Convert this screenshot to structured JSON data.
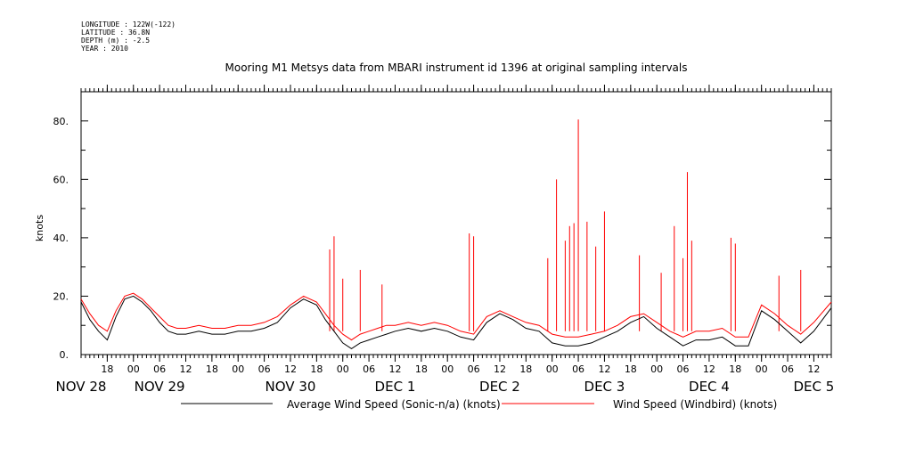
{
  "header": {
    "meta_lines": [
      "LONGITUDE : 122W(-122)",
      "LATITUDE : 36.8N",
      "DEPTH (m) : -2.5",
      "YEAR : 2010"
    ]
  },
  "chart_data": {
    "type": "line",
    "title": "Mooring M1 Metsys data from MBARI instrument id 1396 at original sampling intervals",
    "ylabel": "knots",
    "xlabel": "",
    "year": 2010,
    "ylim": [
      0,
      90
    ],
    "xlim": [
      "2010-11-28T12:00",
      "2010-12-05T16:00"
    ],
    "y_ticks": [
      "0.",
      "20.",
      "40.",
      "60.",
      "80."
    ],
    "y_tick_values": [
      0,
      20,
      40,
      60,
      80
    ],
    "x_tick_labels": [
      "18",
      "00",
      "06",
      "12",
      "18",
      "00",
      "06",
      "12",
      "18",
      "00",
      "06",
      "12",
      "18",
      "00",
      "06",
      "12",
      "18",
      "00",
      "06",
      "12",
      "18",
      "00",
      "06",
      "12",
      "18",
      "00",
      "06",
      "12"
    ],
    "x_tick_times": [
      "2010-11-28T18:00",
      "2010-11-29T00:00",
      "2010-11-29T06:00",
      "2010-11-29T12:00",
      "2010-11-29T18:00",
      "2010-11-30T00:00",
      "2010-11-30T06:00",
      "2010-11-30T12:00",
      "2010-11-30T18:00",
      "2010-12-01T00:00",
      "2010-12-01T06:00",
      "2010-12-01T12:00",
      "2010-12-01T18:00",
      "2010-12-02T00:00",
      "2010-12-02T06:00",
      "2010-12-02T12:00",
      "2010-12-02T18:00",
      "2010-12-03T00:00",
      "2010-12-03T06:00",
      "2010-12-03T12:00",
      "2010-12-03T18:00",
      "2010-12-04T00:00",
      "2010-12-04T06:00",
      "2010-12-04T12:00",
      "2010-12-04T18:00",
      "2010-12-05T00:00",
      "2010-12-05T06:00",
      "2010-12-05T12:00"
    ],
    "date_labels": [
      {
        "text": "NOV 28",
        "time": "2010-11-28T12:00"
      },
      {
        "text": "NOV 29",
        "time": "2010-11-29T06:00"
      },
      {
        "text": "NOV 30",
        "time": "2010-11-30T12:00"
      },
      {
        "text": "DEC  1",
        "time": "2010-12-01T12:00"
      },
      {
        "text": "DEC  2",
        "time": "2010-12-02T12:00"
      },
      {
        "text": "DEC  3",
        "time": "2010-12-03T12:00"
      },
      {
        "text": "DEC  4",
        "time": "2010-12-04T12:00"
      },
      {
        "text": "DEC  5",
        "time": "2010-12-05T12:00"
      }
    ],
    "grid": false,
    "legend_position": "bottom",
    "series": [
      {
        "name": "Average Wind Speed (Sonic-n/a) (knots)",
        "color": "#000000",
        "x": [
          "2010-11-28T12:00",
          "2010-11-28T14:00",
          "2010-11-28T16:00",
          "2010-11-28T18:00",
          "2010-11-28T20:00",
          "2010-11-28T22:00",
          "2010-11-29T00:00",
          "2010-11-29T02:00",
          "2010-11-29T04:00",
          "2010-11-29T06:00",
          "2010-11-29T08:00",
          "2010-11-29T10:00",
          "2010-11-29T12:00",
          "2010-11-29T15:00",
          "2010-11-29T18:00",
          "2010-11-29T21:00",
          "2010-11-30T00:00",
          "2010-11-30T03:00",
          "2010-11-30T06:00",
          "2010-11-30T09:00",
          "2010-11-30T12:00",
          "2010-11-30T15:00",
          "2010-11-30T18:00",
          "2010-11-30T20:00",
          "2010-11-30T22:00",
          "2010-12-01T00:00",
          "2010-12-01T02:00",
          "2010-12-01T04:00",
          "2010-12-01T06:00",
          "2010-12-01T08:00",
          "2010-12-01T10:00",
          "2010-12-01T12:00",
          "2010-12-01T15:00",
          "2010-12-01T18:00",
          "2010-12-01T21:00",
          "2010-12-02T00:00",
          "2010-12-02T03:00",
          "2010-12-02T06:00",
          "2010-12-02T09:00",
          "2010-12-02T12:00",
          "2010-12-02T15:00",
          "2010-12-02T18:00",
          "2010-12-02T21:00",
          "2010-12-03T00:00",
          "2010-12-03T03:00",
          "2010-12-03T06:00",
          "2010-12-03T09:00",
          "2010-12-03T12:00",
          "2010-12-03T15:00",
          "2010-12-03T18:00",
          "2010-12-03T21:00",
          "2010-12-04T00:00",
          "2010-12-04T03:00",
          "2010-12-04T06:00",
          "2010-12-04T09:00",
          "2010-12-04T12:00",
          "2010-12-04T15:00",
          "2010-12-04T18:00",
          "2010-12-04T21:00",
          "2010-12-05T00:00",
          "2010-12-05T03:00",
          "2010-12-05T06:00",
          "2010-12-05T09:00",
          "2010-12-05T12:00",
          "2010-12-05T16:00"
        ],
        "values": [
          18,
          12,
          8,
          5,
          13,
          19,
          20,
          18,
          15,
          11,
          8,
          7,
          7,
          8,
          7,
          7,
          8,
          8,
          9,
          11,
          16,
          19,
          17,
          12,
          8,
          4,
          2,
          4,
          5,
          6,
          7,
          8,
          9,
          8,
          9,
          8,
          6,
          5,
          11,
          14,
          12,
          9,
          8,
          4,
          3,
          3,
          4,
          6,
          8,
          11,
          13,
          9,
          6,
          3,
          5,
          5,
          6,
          3,
          3,
          15,
          12,
          8,
          4,
          8,
          16
        ]
      },
      {
        "name": "Wind Speed (Windbird) (knots)",
        "color": "#ff0000",
        "x": [
          "2010-11-28T12:00",
          "2010-11-28T14:00",
          "2010-11-28T16:00",
          "2010-11-28T18:00",
          "2010-11-28T20:00",
          "2010-11-28T22:00",
          "2010-11-29T00:00",
          "2010-11-29T02:00",
          "2010-11-29T04:00",
          "2010-11-29T06:00",
          "2010-11-29T08:00",
          "2010-11-29T10:00",
          "2010-11-29T12:00",
          "2010-11-29T15:00",
          "2010-11-29T18:00",
          "2010-11-29T21:00",
          "2010-11-30T00:00",
          "2010-11-30T03:00",
          "2010-11-30T06:00",
          "2010-11-30T09:00",
          "2010-11-30T12:00",
          "2010-11-30T15:00",
          "2010-11-30T18:00",
          "2010-11-30T20:00",
          "2010-11-30T22:00",
          "2010-12-01T00:00",
          "2010-12-01T02:00",
          "2010-12-01T04:00",
          "2010-12-01T06:00",
          "2010-12-01T08:00",
          "2010-12-01T10:00",
          "2010-12-01T12:00",
          "2010-12-01T15:00",
          "2010-12-01T18:00",
          "2010-12-01T21:00",
          "2010-12-02T00:00",
          "2010-12-02T03:00",
          "2010-12-02T06:00",
          "2010-12-02T09:00",
          "2010-12-02T12:00",
          "2010-12-02T15:00",
          "2010-12-02T18:00",
          "2010-12-02T21:00",
          "2010-12-03T00:00",
          "2010-12-03T03:00",
          "2010-12-03T06:00",
          "2010-12-03T09:00",
          "2010-12-03T12:00",
          "2010-12-03T15:00",
          "2010-12-03T18:00",
          "2010-12-03T21:00",
          "2010-12-04T00:00",
          "2010-12-04T03:00",
          "2010-12-04T06:00",
          "2010-12-04T09:00",
          "2010-12-04T12:00",
          "2010-12-04T15:00",
          "2010-12-04T18:00",
          "2010-12-04T21:00",
          "2010-12-05T00:00",
          "2010-12-05T03:00",
          "2010-12-05T06:00",
          "2010-12-05T09:00",
          "2010-12-05T12:00",
          "2010-12-05T16:00"
        ],
        "values": [
          19,
          14,
          10,
          8,
          15,
          20,
          21,
          19,
          16,
          13,
          10,
          9,
          9,
          10,
          9,
          9,
          10,
          10,
          11,
          13,
          17,
          20,
          18,
          14,
          10,
          7,
          5,
          7,
          8,
          9,
          10,
          10,
          11,
          10,
          11,
          10,
          8,
          7,
          13,
          15,
          13,
          11,
          10,
          7,
          6,
          6,
          7,
          8,
          10,
          13,
          14,
          11,
          8,
          6,
          8,
          8,
          9,
          6,
          6,
          17,
          14,
          10,
          7,
          11,
          18
        ],
        "spikes": [
          {
            "x": "2010-11-30T21:00",
            "value": 36
          },
          {
            "x": "2010-11-30T22:00",
            "value": 40.5
          },
          {
            "x": "2010-12-01T00:00",
            "value": 26
          },
          {
            "x": "2010-12-01T04:00",
            "value": 29
          },
          {
            "x": "2010-12-01T09:00",
            "value": 24
          },
          {
            "x": "2010-12-02T05:00",
            "value": 41.5
          },
          {
            "x": "2010-12-02T06:00",
            "value": 40.5
          },
          {
            "x": "2010-12-02T23:00",
            "value": 33
          },
          {
            "x": "2010-12-03T01:00",
            "value": 60
          },
          {
            "x": "2010-12-03T03:00",
            "value": 39
          },
          {
            "x": "2010-12-03T04:00",
            "value": 44
          },
          {
            "x": "2010-12-03T05:00",
            "value": 45
          },
          {
            "x": "2010-12-03T06:00",
            "value": 80.5
          },
          {
            "x": "2010-12-03T08:00",
            "value": 45.5
          },
          {
            "x": "2010-12-03T10:00",
            "value": 37
          },
          {
            "x": "2010-12-03T12:00",
            "value": 49
          },
          {
            "x": "2010-12-03T20:00",
            "value": 34
          },
          {
            "x": "2010-12-04T01:00",
            "value": 28
          },
          {
            "x": "2010-12-04T04:00",
            "value": 44
          },
          {
            "x": "2010-12-04T06:00",
            "value": 33
          },
          {
            "x": "2010-12-04T07:00",
            "value": 62.5
          },
          {
            "x": "2010-12-04T08:00",
            "value": 39
          },
          {
            "x": "2010-12-04T17:00",
            "value": 40
          },
          {
            "x": "2010-12-04T18:00",
            "value": 38
          },
          {
            "x": "2010-12-05T04:00",
            "value": 27
          },
          {
            "x": "2010-12-05T09:00",
            "value": 29
          }
        ]
      }
    ]
  }
}
